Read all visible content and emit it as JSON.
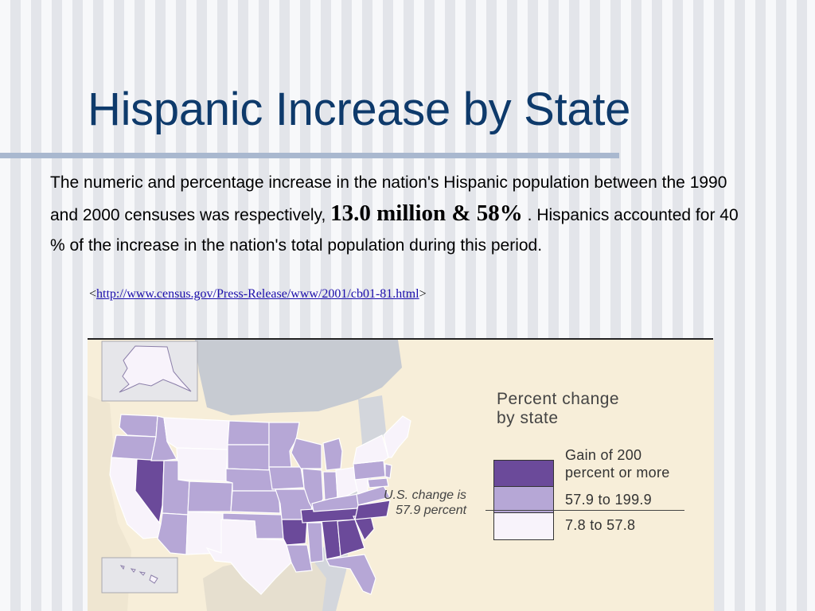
{
  "slide": {
    "title": "Hispanic Increase by State"
  },
  "body": {
    "part1": "The numeric and percentage increase in the nation's Hispanic population between the 1990 and 2000 censuses was respectively, ",
    "highlight": "13.0 million & 58%",
    "part2": " .  Hispanics accounted for 40 %  of the increase in the nation's total population during this period."
  },
  "source": {
    "open": "<",
    "link": "http://www.census.gov/Press-Release/www/2001/cb01-81.html",
    "close": ">"
  },
  "map": {
    "legend_title_line1": "Percent change",
    "legend_title_line2": "by state",
    "us_change_line1": "U.S. change is",
    "us_change_line2": "57.9 percent",
    "legend": [
      {
        "label_line1": "Gain of 200",
        "label_line2": "percent or more",
        "color": "#6b4a9a"
      },
      {
        "label_line1": "57.9 to 199.9",
        "label_line2": "",
        "color": "#b6a7d6"
      },
      {
        "label_line1": "7.8 to 57.8",
        "label_line2": "",
        "color": "#f8f3fb"
      }
    ]
  },
  "colors": {
    "title": "#0e3a6b",
    "dark": "#6b4a9a",
    "mid": "#b6a7d6",
    "light": "#f8f3fb",
    "sea": "#b7bfcb",
    "land": "#f7eed9"
  }
}
